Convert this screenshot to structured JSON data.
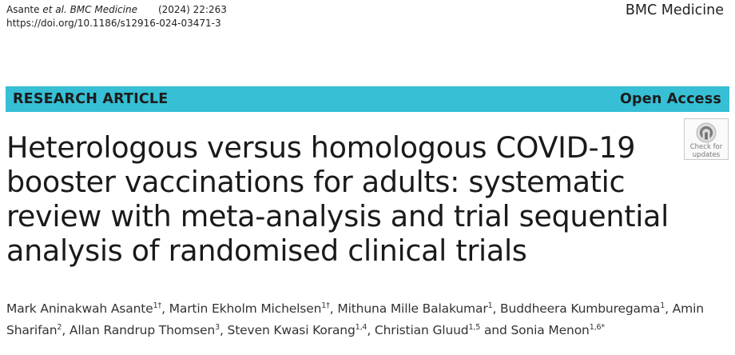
{
  "header": {
    "citation_authors": "Asante",
    "citation_etal": "et al. BMC Medicine",
    "citation_year": "(2024) 22:263",
    "doi": "https://doi.org/10.1186/s12916-024-03471-3",
    "journal": "BMC Medicine"
  },
  "banner": {
    "type": "RESEARCH ARTICLE",
    "access": "Open Access",
    "color": "#36bfd5"
  },
  "title": "Heterologous versus homologous COVID-19 booster vaccinations for adults: systematic review with meta-analysis and trial sequential analysis of randomised clinical trials",
  "badge": {
    "icon": "crossmark-icon",
    "line1": "Check for",
    "line2": "updates"
  },
  "authors": [
    {
      "name": "Mark Aninakwah Asante",
      "sup": "1†",
      "sep": ", "
    },
    {
      "name": "Martin Ekholm Michelsen",
      "sup": "1†",
      "sep": ", "
    },
    {
      "name": "Mithuna Mille Balakumar",
      "sup": "1",
      "sep": ", "
    },
    {
      "name": "Buddheera Kumburegama",
      "sup": "1",
      "sep": ", "
    },
    {
      "name": "Amin Sharifan",
      "sup": "2",
      "sep": ", "
    },
    {
      "name": "Allan Randrup Thomsen",
      "sup": "3",
      "sep": ", "
    },
    {
      "name": "Steven Kwasi Korang",
      "sup": "1,4",
      "sep": ", "
    },
    {
      "name": "Christian Gluud",
      "sup": "1,5",
      "sep": " and "
    },
    {
      "name": "Sonia Menon",
      "sup": "1,6*",
      "sep": ""
    }
  ]
}
